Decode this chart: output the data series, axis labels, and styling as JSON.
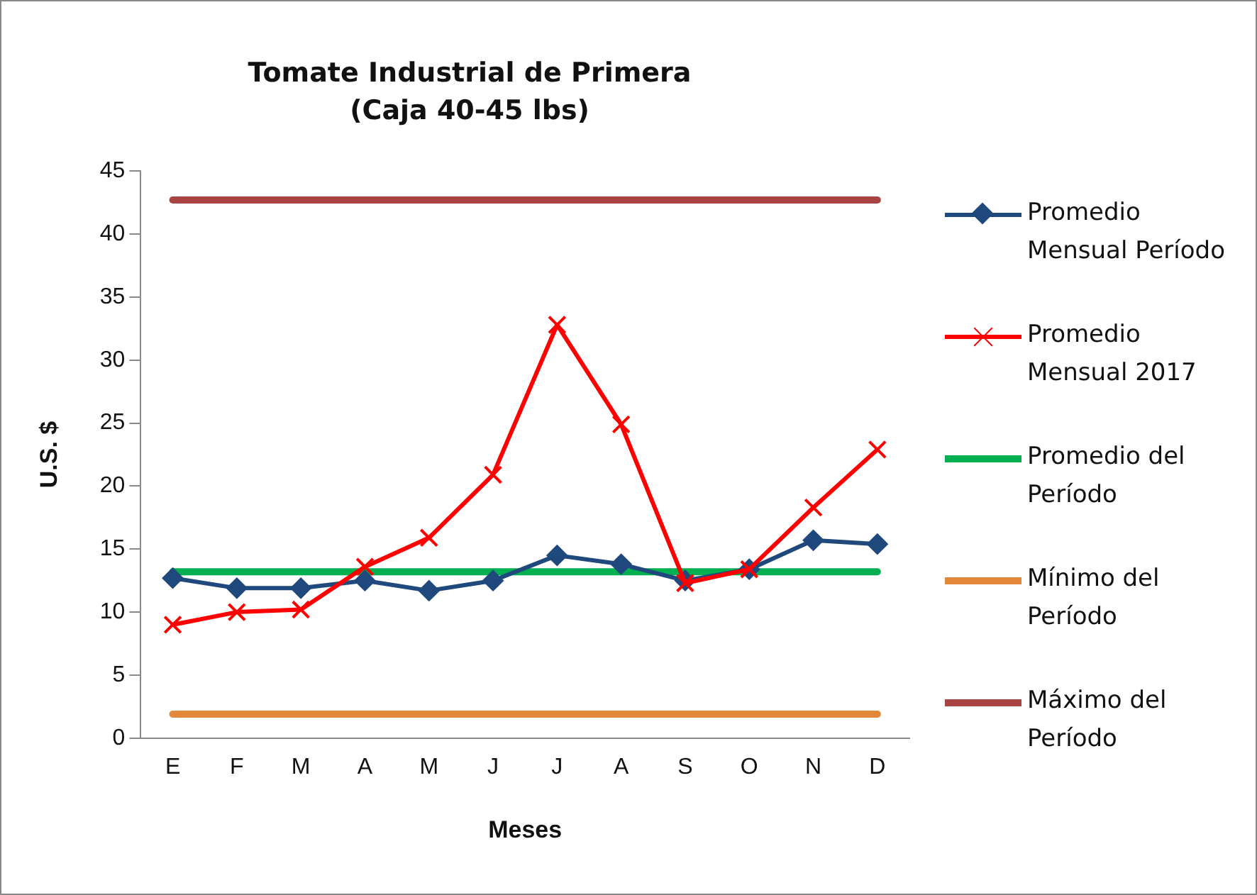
{
  "chart_data": {
    "type": "line",
    "title": "Tomate Industrial de Primera",
    "subtitle": "(Caja 40-45 lbs)",
    "xlabel": "Meses",
    "ylabel": "U.S. $",
    "categories": [
      "E",
      "F",
      "M",
      "A",
      "M",
      "J",
      "J",
      "A",
      "S",
      "O",
      "N",
      "D"
    ],
    "ylim": [
      0,
      45
    ],
    "yticks": [
      0,
      5,
      10,
      15,
      20,
      25,
      30,
      35,
      40,
      45
    ],
    "grid": false,
    "legend": "right",
    "series": [
      {
        "name": "Promedio Mensual Período",
        "color": "#1f497d",
        "marker": "diamond",
        "values": [
          12.7,
          11.9,
          11.9,
          12.5,
          11.7,
          12.5,
          14.5,
          13.8,
          12.5,
          13.4,
          15.7,
          15.4
        ]
      },
      {
        "name": "Promedio Mensual 2017",
        "color": "#ff0000",
        "marker": "cross",
        "values": [
          9.0,
          10.0,
          10.2,
          13.6,
          15.9,
          20.9,
          32.8,
          24.9,
          12.3,
          13.4,
          18.3,
          22.9
        ]
      },
      {
        "name": "Promedio del Período",
        "color": "#00b050",
        "marker": "none",
        "values": [
          13.2,
          13.2,
          13.2,
          13.2,
          13.2,
          13.2,
          13.2,
          13.2,
          13.2,
          13.2,
          13.2,
          13.2
        ]
      },
      {
        "name": "Mínimo del Período",
        "color": "#e3883a",
        "marker": "none",
        "values": [
          1.9,
          1.9,
          1.9,
          1.9,
          1.9,
          1.9,
          1.9,
          1.9,
          1.9,
          1.9,
          1.9,
          1.9
        ]
      },
      {
        "name": "Máximo del Período",
        "color": "#a94442",
        "marker": "none",
        "values": [
          42.7,
          42.7,
          42.7,
          42.7,
          42.7,
          42.7,
          42.7,
          42.7,
          42.7,
          42.7,
          42.7,
          42.7
        ]
      }
    ]
  }
}
